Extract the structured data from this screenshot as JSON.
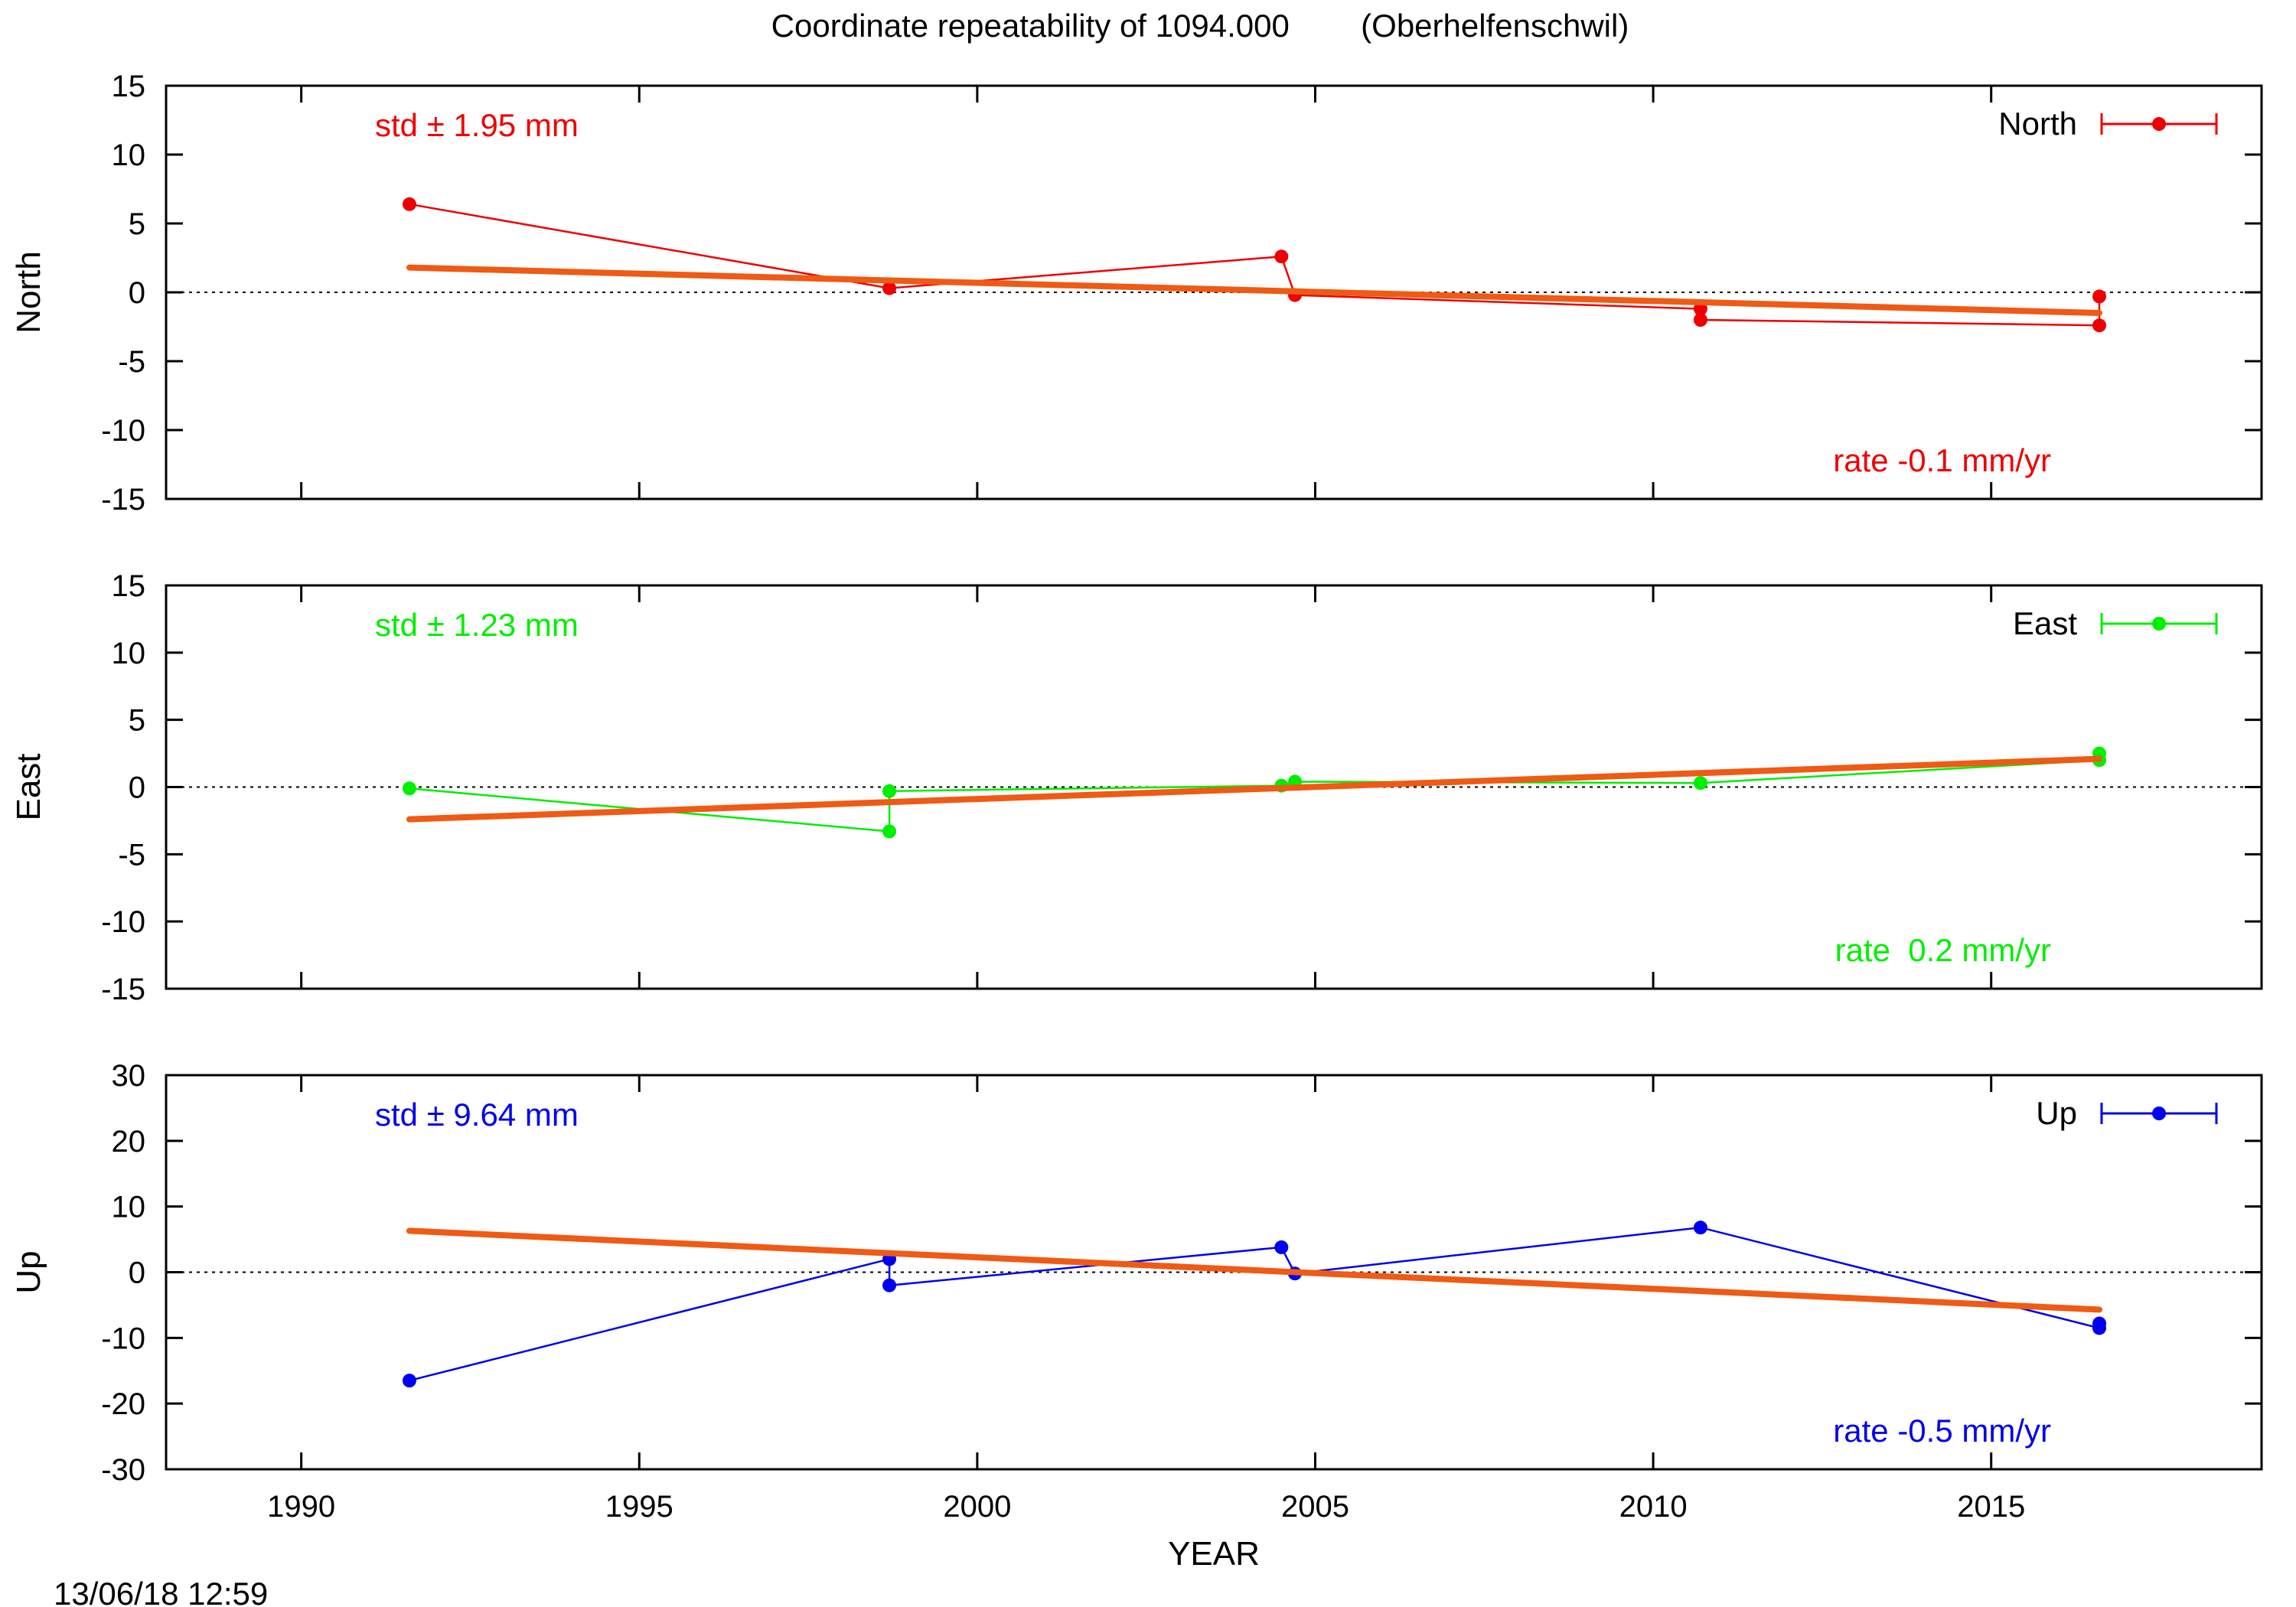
{
  "title": "Coordinate repeatability of 1094.000        (Oberhelfenschwil)",
  "timestamp": "13/06/18 12:59",
  "chart_data": [
    {
      "type": "line",
      "panel": "north",
      "ylabel": "North",
      "xlabel": "",
      "xlim": [
        1988,
        2019
      ],
      "ylim": [
        -15,
        15
      ],
      "yticks": [
        15,
        10,
        5,
        0,
        -5,
        -10,
        -15
      ],
      "color": "#ee0000",
      "std_label": "std ± 1.95 mm",
      "rate_label": "rate -0.1 mm/yr",
      "legend": "North",
      "legend_position": "top-right",
      "zero_line": true,
      "series": [
        {
          "name": "North",
          "points": [
            {
              "x": 1991.6,
              "y": 6.4
            },
            {
              "x": 1998.7,
              "y": 0.3
            },
            {
              "x": 2004.5,
              "y": 2.6
            },
            {
              "x": 2004.7,
              "y": -0.2
            },
            {
              "x": 2010.7,
              "y": -1.2
            },
            {
              "x": 2010.7,
              "y": -2.0
            },
            {
              "x": 2016.6,
              "y": -2.4
            },
            {
              "x": 2016.6,
              "y": -0.3
            }
          ]
        }
      ],
      "fit": {
        "x": [
          1991.6,
          2016.6
        ],
        "y": [
          1.8,
          -1.5
        ]
      }
    },
    {
      "type": "line",
      "panel": "east",
      "ylabel": "East",
      "xlabel": "",
      "xlim": [
        1988,
        2019
      ],
      "ylim": [
        -15,
        15
      ],
      "yticks": [
        15,
        10,
        5,
        0,
        -5,
        -10,
        -15
      ],
      "color": "#00ee00",
      "std_label": "std ± 1.23 mm",
      "rate_label": "rate  0.2 mm/yr",
      "legend": "East",
      "legend_position": "top-right",
      "zero_line": true,
      "series": [
        {
          "name": "East",
          "points": [
            {
              "x": 1991.6,
              "y": -0.1
            },
            {
              "x": 1998.7,
              "y": -3.3
            },
            {
              "x": 1998.7,
              "y": -0.3
            },
            {
              "x": 2004.5,
              "y": 0.1
            },
            {
              "x": 2004.7,
              "y": 0.4
            },
            {
              "x": 2010.7,
              "y": 0.3
            },
            {
              "x": 2016.6,
              "y": 2.0
            },
            {
              "x": 2016.6,
              "y": 2.5
            }
          ]
        }
      ],
      "fit": {
        "x": [
          1991.6,
          2016.6
        ],
        "y": [
          -2.4,
          2.1
        ]
      }
    },
    {
      "type": "line",
      "panel": "up",
      "ylabel": "Up",
      "xlabel": "YEAR",
      "xlim": [
        1988,
        2019
      ],
      "ylim": [
        -30,
        30
      ],
      "yticks": [
        30,
        20,
        10,
        0,
        -10,
        -20,
        -30
      ],
      "xticks": [
        1990,
        1995,
        2000,
        2005,
        2010,
        2015
      ],
      "color": "#0000ee",
      "std_label": "std ± 9.64 mm",
      "rate_label": "rate -0.5 mm/yr",
      "legend": "Up",
      "legend_position": "top-right",
      "zero_line": true,
      "series": [
        {
          "name": "Up",
          "points": [
            {
              "x": 1991.6,
              "y": -16.5
            },
            {
              "x": 1998.7,
              "y": 2.0
            },
            {
              "x": 1998.7,
              "y": -2.0
            },
            {
              "x": 2004.5,
              "y": 3.8
            },
            {
              "x": 2004.7,
              "y": -0.2
            },
            {
              "x": 2010.7,
              "y": 6.8
            },
            {
              "x": 2016.6,
              "y": -8.5
            },
            {
              "x": 2016.6,
              "y": -7.8
            }
          ]
        }
      ],
      "fit": {
        "x": [
          1991.6,
          2016.6
        ],
        "y": [
          6.3,
          -5.7
        ]
      }
    }
  ]
}
